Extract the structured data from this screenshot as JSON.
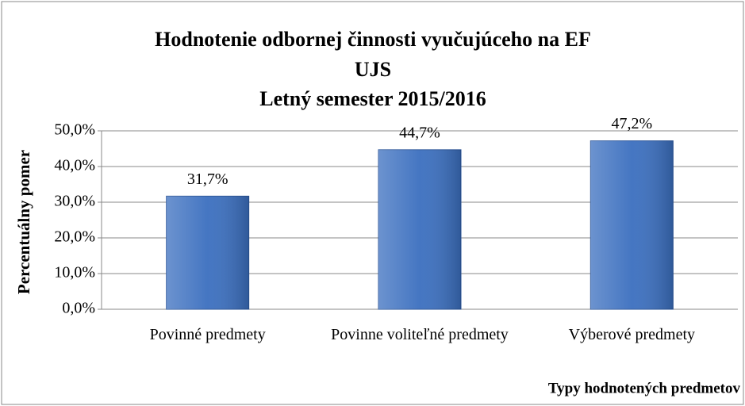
{
  "chart_data": {
    "type": "bar",
    "title": [
      "Hodnotenie odbornej činnosti vyučujúceho na EF",
      "UJS"
    ],
    "subtitle": "Letný semester 2015/2016",
    "y_label": "Percentuálny pomer",
    "x_label": "Typy hodnotených predmetov",
    "categories": [
      "Povinné predmety",
      "Povinne voliteľné predmety",
      "Výberové predmety"
    ],
    "values": [
      31.7,
      44.7,
      47.2
    ],
    "value_labels": [
      "31,7%",
      "44,7%",
      "47,2%"
    ],
    "color": "#3b6fbf",
    "ylim": [
      0,
      50
    ],
    "yticks": [
      {
        "value": 0,
        "label": "0,0%"
      },
      {
        "value": 10,
        "label": "10,0%"
      },
      {
        "value": 20,
        "label": "20,0%"
      },
      {
        "value": 30,
        "label": "30,0%"
      },
      {
        "value": 40,
        "label": "40,0%"
      },
      {
        "value": 50,
        "label": "50,0%"
      }
    ],
    "grid": true
  }
}
